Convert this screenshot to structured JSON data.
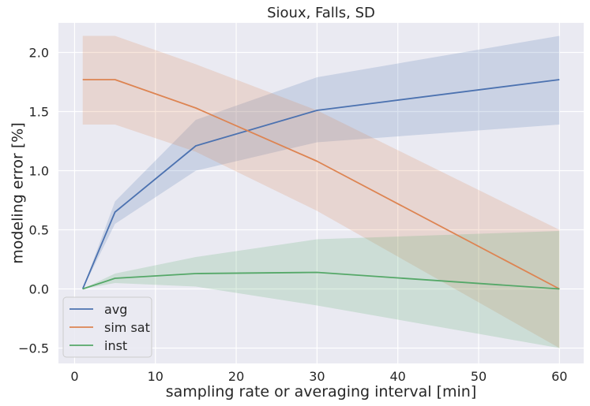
{
  "chart_data": {
    "type": "line",
    "title": "Sioux, Falls, SD",
    "xlabel": "sampling rate or averaging interval [min]",
    "ylabel": "modeling error [%]",
    "xlim": [
      -2,
      63
    ],
    "ylim": [
      -0.63,
      2.25
    ],
    "xticks": [
      0,
      10,
      20,
      30,
      40,
      50,
      60
    ],
    "yticks": [
      -0.5,
      0.0,
      0.5,
      1.0,
      1.5,
      2.0
    ],
    "ytick_labels": [
      "−0.5",
      "0.0",
      "0.5",
      "1.0",
      "1.5",
      "2.0"
    ],
    "grid": true,
    "legend_position": "lower-left",
    "x": [
      1,
      5,
      15,
      30,
      60
    ],
    "series": [
      {
        "name": "avg",
        "color": "#4c72b0",
        "values": [
          0.0,
          0.65,
          1.21,
          1.51,
          1.77
        ],
        "band_upper": [
          0.0,
          0.74,
          1.43,
          1.79,
          2.14
        ],
        "band_lower": [
          0.0,
          0.55,
          1.0,
          1.24,
          1.39
        ]
      },
      {
        "name": "sim sat",
        "color": "#dd8452",
        "values": [
          1.77,
          1.77,
          1.53,
          1.08,
          0.0
        ],
        "band_upper": [
          2.14,
          2.14,
          1.9,
          1.51,
          0.5
        ],
        "band_lower": [
          1.39,
          1.39,
          1.16,
          0.66,
          -0.5
        ]
      },
      {
        "name": "inst",
        "color": "#55a868",
        "values": [
          0.0,
          0.09,
          0.13,
          0.14,
          0.0
        ],
        "band_upper": [
          0.0,
          0.13,
          0.27,
          0.42,
          0.49
        ],
        "band_lower": [
          0.0,
          0.05,
          0.02,
          -0.14,
          -0.5
        ]
      }
    ]
  }
}
